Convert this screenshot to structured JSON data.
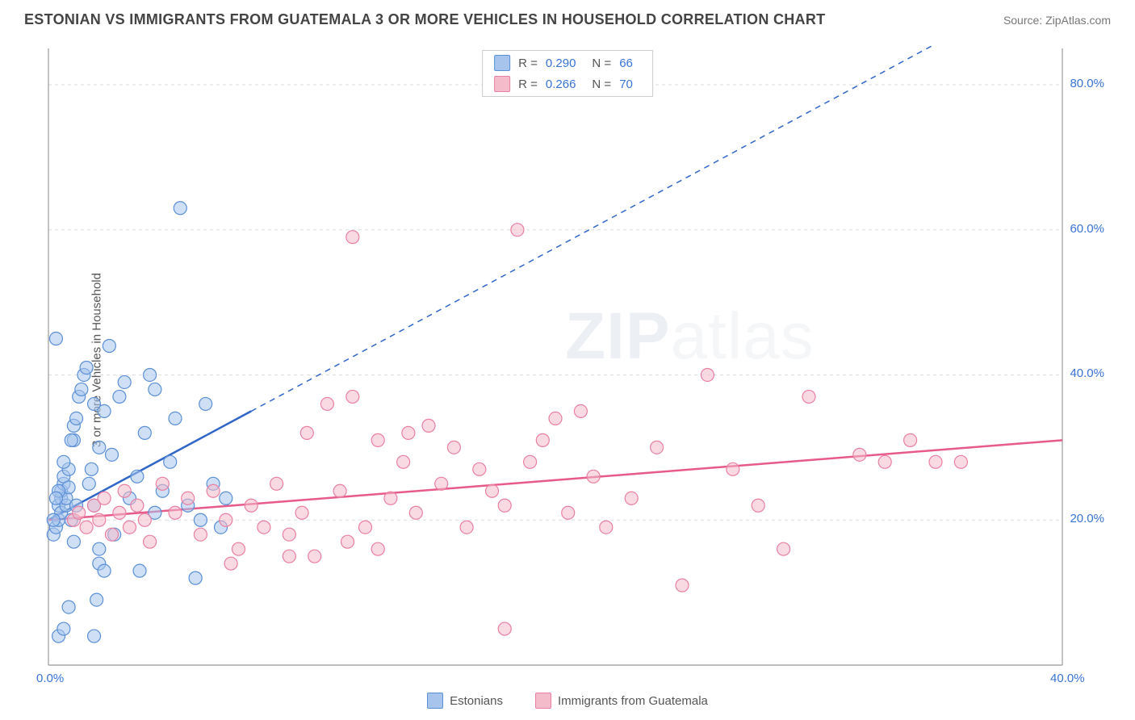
{
  "title": "ESTONIAN VS IMMIGRANTS FROM GUATEMALA 3 OR MORE VEHICLES IN HOUSEHOLD CORRELATION CHART",
  "source": "Source: ZipAtlas.com",
  "y_axis_label": "3 or more Vehicles in Household",
  "watermark": "ZIPatlas",
  "chart": {
    "type": "scatter",
    "xlim": [
      0,
      40
    ],
    "ylim": [
      0,
      85
    ],
    "x_ticks": [
      {
        "v": 0,
        "l": "0.0%"
      },
      {
        "v": 40,
        "l": "40.0%"
      }
    ],
    "y_ticks": [
      {
        "v": 20,
        "l": "20.0%"
      },
      {
        "v": 40,
        "l": "40.0%"
      },
      {
        "v": 60,
        "l": "60.0%"
      },
      {
        "v": 80,
        "l": "80.0%"
      }
    ],
    "grid_color": "#dcdcdc",
    "grid_dash": "4,4",
    "axis_color": "#999999",
    "background": "#ffffff",
    "marker_radius": 8,
    "marker_opacity": 0.55,
    "series": [
      {
        "name": "Estonians",
        "fill": "#a7c4ec",
        "stroke": "#5a8fd6",
        "R": "0.290",
        "N": "66",
        "trend": {
          "x1": 0,
          "y1": 20,
          "x2": 8,
          "y2": 35,
          "solid_to_x": 8,
          "x2_ext": 40,
          "y2_ext": 95,
          "color": "#2f66c7"
        },
        "points": [
          [
            0.2,
            18
          ],
          [
            0.3,
            19
          ],
          [
            0.4,
            20
          ],
          [
            0.4,
            22
          ],
          [
            0.5,
            21
          ],
          [
            0.5,
            23
          ],
          [
            0.5,
            24
          ],
          [
            0.6,
            25
          ],
          [
            0.6,
            26
          ],
          [
            0.7,
            22
          ],
          [
            0.7,
            23
          ],
          [
            0.8,
            24.5
          ],
          [
            0.8,
            27
          ],
          [
            0.9,
            20
          ],
          [
            1.0,
            31
          ],
          [
            1.0,
            33
          ],
          [
            1.1,
            34
          ],
          [
            1.2,
            37
          ],
          [
            1.3,
            38
          ],
          [
            1.4,
            40
          ],
          [
            1.5,
            41
          ],
          [
            1.6,
            25
          ],
          [
            1.7,
            27
          ],
          [
            1.8,
            22
          ],
          [
            1.8,
            36
          ],
          [
            2.0,
            30
          ],
          [
            2.0,
            14
          ],
          [
            2.2,
            13
          ],
          [
            2.2,
            35
          ],
          [
            2.4,
            44
          ],
          [
            2.5,
            29
          ],
          [
            2.6,
            18
          ],
          [
            2.8,
            37
          ],
          [
            3.0,
            39
          ],
          [
            3.2,
            23
          ],
          [
            3.5,
            26
          ],
          [
            3.8,
            32
          ],
          [
            4.0,
            40
          ],
          [
            4.2,
            21
          ],
          [
            4.5,
            24
          ],
          [
            4.8,
            28
          ],
          [
            5.0,
            34
          ],
          [
            5.2,
            63
          ],
          [
            5.5,
            22
          ],
          [
            5.8,
            12
          ],
          [
            6.0,
            20
          ],
          [
            6.2,
            36
          ],
          [
            6.5,
            25
          ],
          [
            6.8,
            19
          ],
          [
            7.0,
            23
          ],
          [
            1.0,
            17
          ],
          [
            0.3,
            45
          ],
          [
            0.4,
            4
          ],
          [
            0.6,
            5
          ],
          [
            1.8,
            4
          ],
          [
            0.8,
            8
          ],
          [
            1.9,
            9
          ],
          [
            2.0,
            16
          ],
          [
            0.2,
            20
          ],
          [
            0.4,
            24
          ],
          [
            0.9,
            31
          ],
          [
            1.1,
            22
          ],
          [
            0.3,
            23
          ],
          [
            0.6,
            28
          ],
          [
            4.2,
            38
          ],
          [
            3.6,
            13
          ]
        ]
      },
      {
        "name": "Immigrants from Guatemala",
        "fill": "#f4bccb",
        "stroke": "#e97fa3",
        "R": "0.266",
        "N": "70",
        "trend": {
          "x1": 0,
          "y1": 20,
          "x2": 40,
          "y2": 31,
          "solid_to_x": 40,
          "color": "#e75a8a"
        },
        "points": [
          [
            1.0,
            20
          ],
          [
            1.2,
            21
          ],
          [
            1.5,
            19
          ],
          [
            1.8,
            22
          ],
          [
            2.0,
            20
          ],
          [
            2.2,
            23
          ],
          [
            2.5,
            18
          ],
          [
            2.8,
            21
          ],
          [
            3.0,
            24
          ],
          [
            3.2,
            19
          ],
          [
            3.5,
            22
          ],
          [
            3.8,
            20
          ],
          [
            4.0,
            17
          ],
          [
            4.5,
            25
          ],
          [
            5.0,
            21
          ],
          [
            5.5,
            23
          ],
          [
            6.0,
            18
          ],
          [
            6.5,
            24
          ],
          [
            7.0,
            20
          ],
          [
            7.5,
            16
          ],
          [
            8.0,
            22
          ],
          [
            8.5,
            19
          ],
          [
            9.0,
            25
          ],
          [
            9.5,
            18
          ],
          [
            10.0,
            21
          ],
          [
            10.5,
            15
          ],
          [
            11.0,
            36
          ],
          [
            11.5,
            24
          ],
          [
            12.0,
            37
          ],
          [
            12.5,
            19
          ],
          [
            13.0,
            31
          ],
          [
            13.5,
            23
          ],
          [
            14.0,
            28
          ],
          [
            14.5,
            21
          ],
          [
            15.0,
            33
          ],
          [
            15.5,
            25
          ],
          [
            16.0,
            30
          ],
          [
            16.5,
            19
          ],
          [
            17.0,
            27
          ],
          [
            17.5,
            24
          ],
          [
            18.0,
            22
          ],
          [
            18.5,
            60
          ],
          [
            19.0,
            28
          ],
          [
            19.5,
            31
          ],
          [
            20.0,
            34
          ],
          [
            20.5,
            21
          ],
          [
            21.0,
            35
          ],
          [
            21.5,
            26
          ],
          [
            22.0,
            19
          ],
          [
            23.0,
            23
          ],
          [
            24.0,
            30
          ],
          [
            25.0,
            11
          ],
          [
            26.0,
            40
          ],
          [
            27.0,
            27
          ],
          [
            28.0,
            22
          ],
          [
            29.0,
            16
          ],
          [
            30.0,
            37
          ],
          [
            32.0,
            29
          ],
          [
            33.0,
            28
          ],
          [
            34.0,
            31
          ],
          [
            35.0,
            28
          ],
          [
            36.0,
            28
          ],
          [
            12.0,
            59
          ],
          [
            18.0,
            5
          ],
          [
            13.0,
            16
          ],
          [
            9.5,
            15
          ],
          [
            10.2,
            32
          ],
          [
            11.8,
            17
          ],
          [
            14.2,
            32
          ],
          [
            7.2,
            14
          ]
        ]
      }
    ]
  },
  "bottom_legend": [
    {
      "label": "Estonians",
      "fill": "#a7c4ec",
      "stroke": "#5a8fd6"
    },
    {
      "label": "Immigrants from Guatemala",
      "fill": "#f4bccb",
      "stroke": "#e97fa3"
    }
  ]
}
